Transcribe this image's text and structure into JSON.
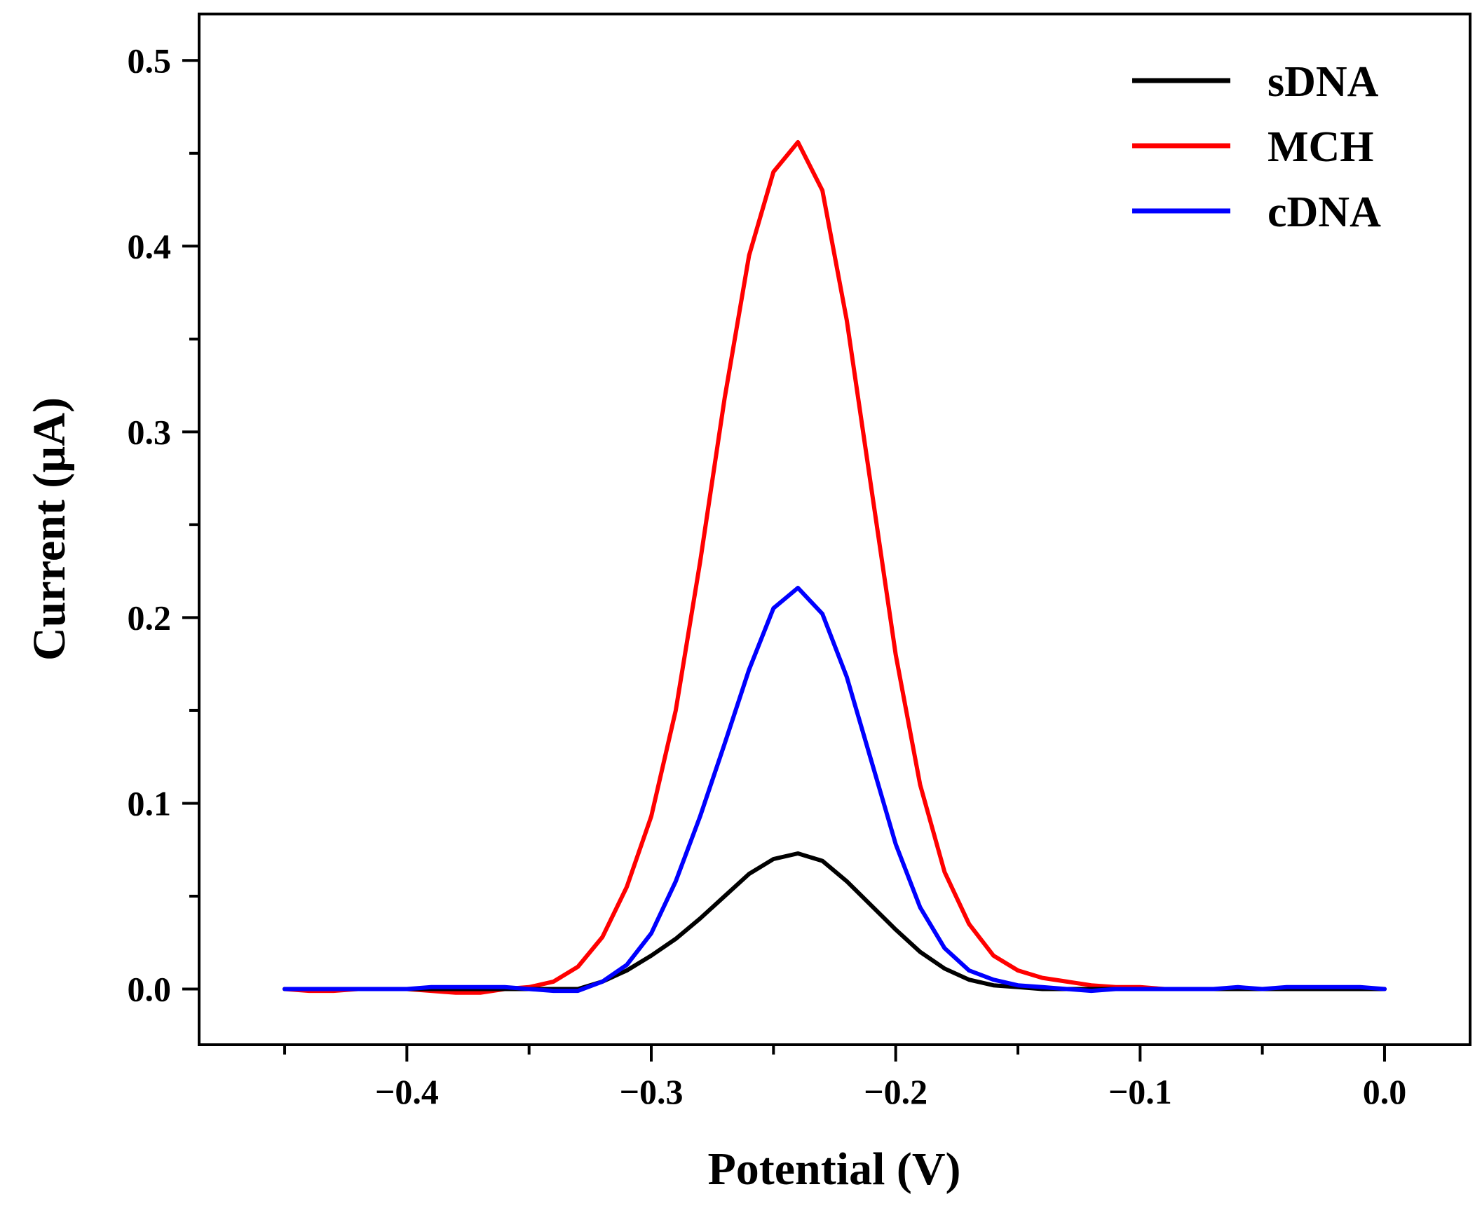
{
  "chart_data": {
    "type": "line",
    "title": "",
    "xlabel": "Potential (V)",
    "ylabel": "Current (µA)",
    "xlim": [
      -0.485,
      0.035
    ],
    "ylim": [
      -0.03,
      0.525
    ],
    "xticks": [
      -0.4,
      -0.3,
      -0.2,
      -0.1,
      0.0
    ],
    "xtick_labels": [
      "−0.4",
      "−0.3",
      "−0.2",
      "−0.1",
      "0.0"
    ],
    "yticks": [
      0.0,
      0.1,
      0.2,
      0.3,
      0.4,
      0.5
    ],
    "ytick_labels": [
      "0.0",
      "0.1",
      "0.2",
      "0.3",
      "0.4",
      "0.5"
    ],
    "grid": false,
    "legend_position": "top-right",
    "series": [
      {
        "name": "sDNA",
        "color": "#000000",
        "x": [
          -0.45,
          -0.44,
          -0.43,
          -0.42,
          -0.41,
          -0.4,
          -0.39,
          -0.38,
          -0.37,
          -0.36,
          -0.35,
          -0.34,
          -0.33,
          -0.32,
          -0.31,
          -0.3,
          -0.29,
          -0.28,
          -0.27,
          -0.26,
          -0.25,
          -0.24,
          -0.23,
          -0.22,
          -0.21,
          -0.2,
          -0.19,
          -0.18,
          -0.17,
          -0.16,
          -0.15,
          -0.14,
          -0.13,
          -0.12,
          -0.11,
          -0.1,
          -0.09,
          -0.08,
          -0.07,
          -0.06,
          -0.05,
          -0.04,
          -0.03,
          -0.02,
          -0.01,
          0.0
        ],
        "y": [
          0.0,
          0.0,
          0.0,
          0.0,
          0.0,
          0.0,
          0.0,
          0.0,
          0.0,
          0.0,
          0.0,
          0.0,
          0.0,
          0.004,
          0.01,
          0.018,
          0.027,
          0.038,
          0.05,
          0.062,
          0.07,
          0.073,
          0.069,
          0.058,
          0.045,
          0.032,
          0.02,
          0.011,
          0.005,
          0.002,
          0.001,
          0.0,
          0.0,
          0.0,
          0.0,
          0.0,
          0.0,
          0.0,
          0.0,
          0.0,
          0.0,
          0.0,
          0.0,
          0.0,
          0.0,
          0.0
        ]
      },
      {
        "name": "MCH",
        "color": "#ff0000",
        "x": [
          -0.45,
          -0.44,
          -0.43,
          -0.42,
          -0.41,
          -0.4,
          -0.39,
          -0.38,
          -0.37,
          -0.36,
          -0.35,
          -0.34,
          -0.33,
          -0.32,
          -0.31,
          -0.3,
          -0.29,
          -0.28,
          -0.27,
          -0.26,
          -0.25,
          -0.24,
          -0.23,
          -0.22,
          -0.21,
          -0.2,
          -0.19,
          -0.18,
          -0.17,
          -0.16,
          -0.15,
          -0.14,
          -0.13,
          -0.12,
          -0.11,
          -0.1,
          -0.09,
          -0.08,
          -0.07,
          -0.06,
          -0.05,
          -0.04,
          -0.03,
          -0.02,
          -0.01,
          0.0
        ],
        "y": [
          0.0,
          -0.001,
          -0.001,
          0.0,
          0.0,
          0.0,
          -0.001,
          -0.002,
          -0.002,
          0.0,
          0.001,
          0.004,
          0.012,
          0.028,
          0.055,
          0.093,
          0.15,
          0.23,
          0.318,
          0.395,
          0.44,
          0.456,
          0.43,
          0.36,
          0.27,
          0.18,
          0.11,
          0.063,
          0.035,
          0.018,
          0.01,
          0.006,
          0.004,
          0.002,
          0.001,
          0.001,
          0.0,
          0.0,
          0.0,
          0.0,
          0.0,
          0.0,
          0.0,
          0.0,
          0.0,
          0.0
        ]
      },
      {
        "name": "cDNA",
        "color": "#0000ff",
        "x": [
          -0.45,
          -0.44,
          -0.43,
          -0.42,
          -0.41,
          -0.4,
          -0.39,
          -0.38,
          -0.37,
          -0.36,
          -0.35,
          -0.34,
          -0.33,
          -0.32,
          -0.31,
          -0.3,
          -0.29,
          -0.28,
          -0.27,
          -0.26,
          -0.25,
          -0.24,
          -0.23,
          -0.22,
          -0.21,
          -0.2,
          -0.19,
          -0.18,
          -0.17,
          -0.16,
          -0.15,
          -0.14,
          -0.13,
          -0.12,
          -0.11,
          -0.1,
          -0.09,
          -0.08,
          -0.07,
          -0.06,
          -0.05,
          -0.04,
          -0.03,
          -0.02,
          -0.01,
          0.0
        ],
        "y": [
          0.0,
          0.0,
          0.0,
          0.0,
          0.0,
          0.0,
          0.001,
          0.001,
          0.001,
          0.001,
          0.0,
          -0.001,
          -0.001,
          0.004,
          0.013,
          0.03,
          0.058,
          0.093,
          0.132,
          0.172,
          0.205,
          0.216,
          0.202,
          0.168,
          0.123,
          0.078,
          0.044,
          0.022,
          0.01,
          0.005,
          0.002,
          0.001,
          0.0,
          -0.001,
          0.0,
          0.0,
          0.0,
          0.0,
          0.0,
          0.001,
          0.0,
          0.001,
          0.001,
          0.001,
          0.001,
          0.0
        ]
      }
    ]
  }
}
